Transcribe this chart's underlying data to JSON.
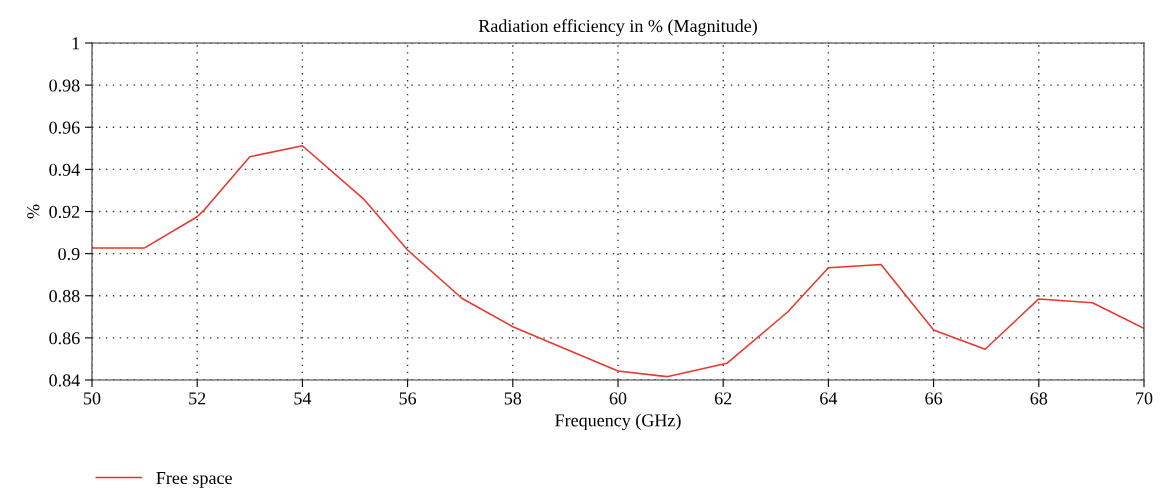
{
  "chart_data": {
    "type": "line",
    "title": "Radiation efficiency in % (Magnitude)",
    "xlabel": "Frequency (GHz)",
    "ylabel": "%",
    "x": [
      50,
      51,
      52,
      52.12,
      53,
      54,
      55.16,
      56,
      57.03,
      58,
      60,
      60.93,
      62.07,
      63.23,
      64,
      65,
      66,
      66.98,
      68,
      69.02,
      70
    ],
    "series": [
      {
        "name": "Free space",
        "color": "#e8372c",
        "values": [
          0.9027,
          0.9027,
          0.9175,
          0.9204,
          0.946,
          0.9512,
          0.926,
          0.9017,
          0.8788,
          0.8653,
          0.8443,
          0.8416,
          0.8479,
          0.8724,
          0.8933,
          0.8948,
          0.8637,
          0.8546,
          0.8785,
          0.8767,
          0.8645
        ]
      }
    ],
    "xlim": [
      50,
      70
    ],
    "xticks": [
      50,
      52,
      54,
      56,
      58,
      60,
      62,
      64,
      66,
      68,
      70
    ],
    "ylim": [
      0.84,
      1
    ],
    "yticks": [
      0.84,
      0.86,
      0.88,
      0.9,
      0.92,
      0.94,
      0.96,
      0.98,
      1
    ],
    "grid": true,
    "legend": "bottom left",
    "marker": "none",
    "line_style": "solid"
  }
}
